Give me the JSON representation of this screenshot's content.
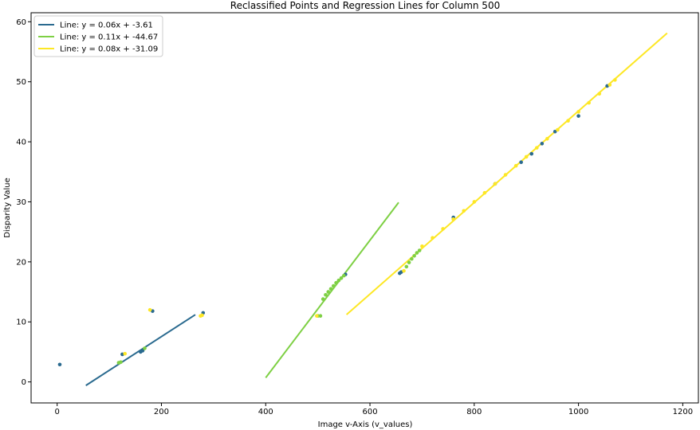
{
  "chart_data": {
    "type": "scatter",
    "title": "Reclassified Points and Regression Lines for Column 500",
    "xlabel": "Image v-Axis (v_values)",
    "ylabel": "Disparity Value",
    "xlim": [
      -50,
      1230
    ],
    "ylim": [
      -3.5,
      61.5
    ],
    "x_ticks": [
      0,
      200,
      400,
      600,
      800,
      1000,
      1200
    ],
    "y_ticks": [
      0,
      10,
      20,
      30,
      40,
      50,
      60
    ],
    "grid": false,
    "legend_position": "top-left",
    "lines": [
      {
        "name": "Line: y = 0.06x + -3.61",
        "color": "#2a6a8f",
        "x": [
          55,
          265
        ],
        "y": [
          -0.6,
          11.2
        ]
      },
      {
        "name": "Line: y = 0.11x + -44.67",
        "color": "#7ed044",
        "x": [
          400,
          655
        ],
        "y": [
          0.7,
          29.9
        ]
      },
      {
        "name": "Line: y = 0.08x + -31.09",
        "color": "#fde725",
        "x": [
          555,
          1170
        ],
        "y": [
          11.2,
          58.1
        ]
      }
    ],
    "points": [
      {
        "color": "#2a6a8f",
        "x": [
          5,
          125,
          160,
          164,
          183,
          280,
          553,
          657,
          660,
          760,
          840,
          890,
          910,
          930,
          955,
          1000,
          1055
        ],
        "y": [
          2.9,
          4.6,
          5.0,
          5.2,
          11.8,
          11.5,
          17.9,
          18.1,
          18.3,
          27.4,
          33.0,
          36.6,
          38.0,
          39.7,
          41.7,
          44.3,
          49.3
        ]
      },
      {
        "color": "#7ed044",
        "x": [
          118,
          122,
          168,
          500,
          505,
          510,
          515,
          520,
          525,
          530,
          535,
          540,
          545,
          550,
          670,
          675,
          680,
          685,
          690,
          695
        ],
        "y": [
          3.2,
          3.3,
          5.6,
          11.0,
          11.0,
          13.8,
          14.5,
          15.0,
          15.5,
          16.0,
          16.5,
          16.9,
          17.3,
          17.7,
          19.2,
          19.9,
          20.5,
          21.0,
          21.5,
          21.9
        ]
      },
      {
        "color": "#fde725",
        "x": [
          130,
          178,
          275,
          278,
          498,
          665,
          700,
          720,
          740,
          760,
          780,
          800,
          820,
          840,
          860,
          880,
          900,
          920,
          940,
          960,
          980,
          1000,
          1020,
          1040,
          1060,
          1070
        ],
        "y": [
          4.7,
          12.0,
          11.0,
          11.1,
          11.0,
          18.5,
          22.6,
          24.0,
          25.5,
          27.1,
          28.5,
          30.0,
          31.5,
          33.0,
          34.5,
          36.0,
          37.5,
          39.0,
          40.5,
          42.0,
          43.5,
          45.0,
          46.5,
          48.0,
          49.5,
          50.3
        ]
      }
    ]
  }
}
